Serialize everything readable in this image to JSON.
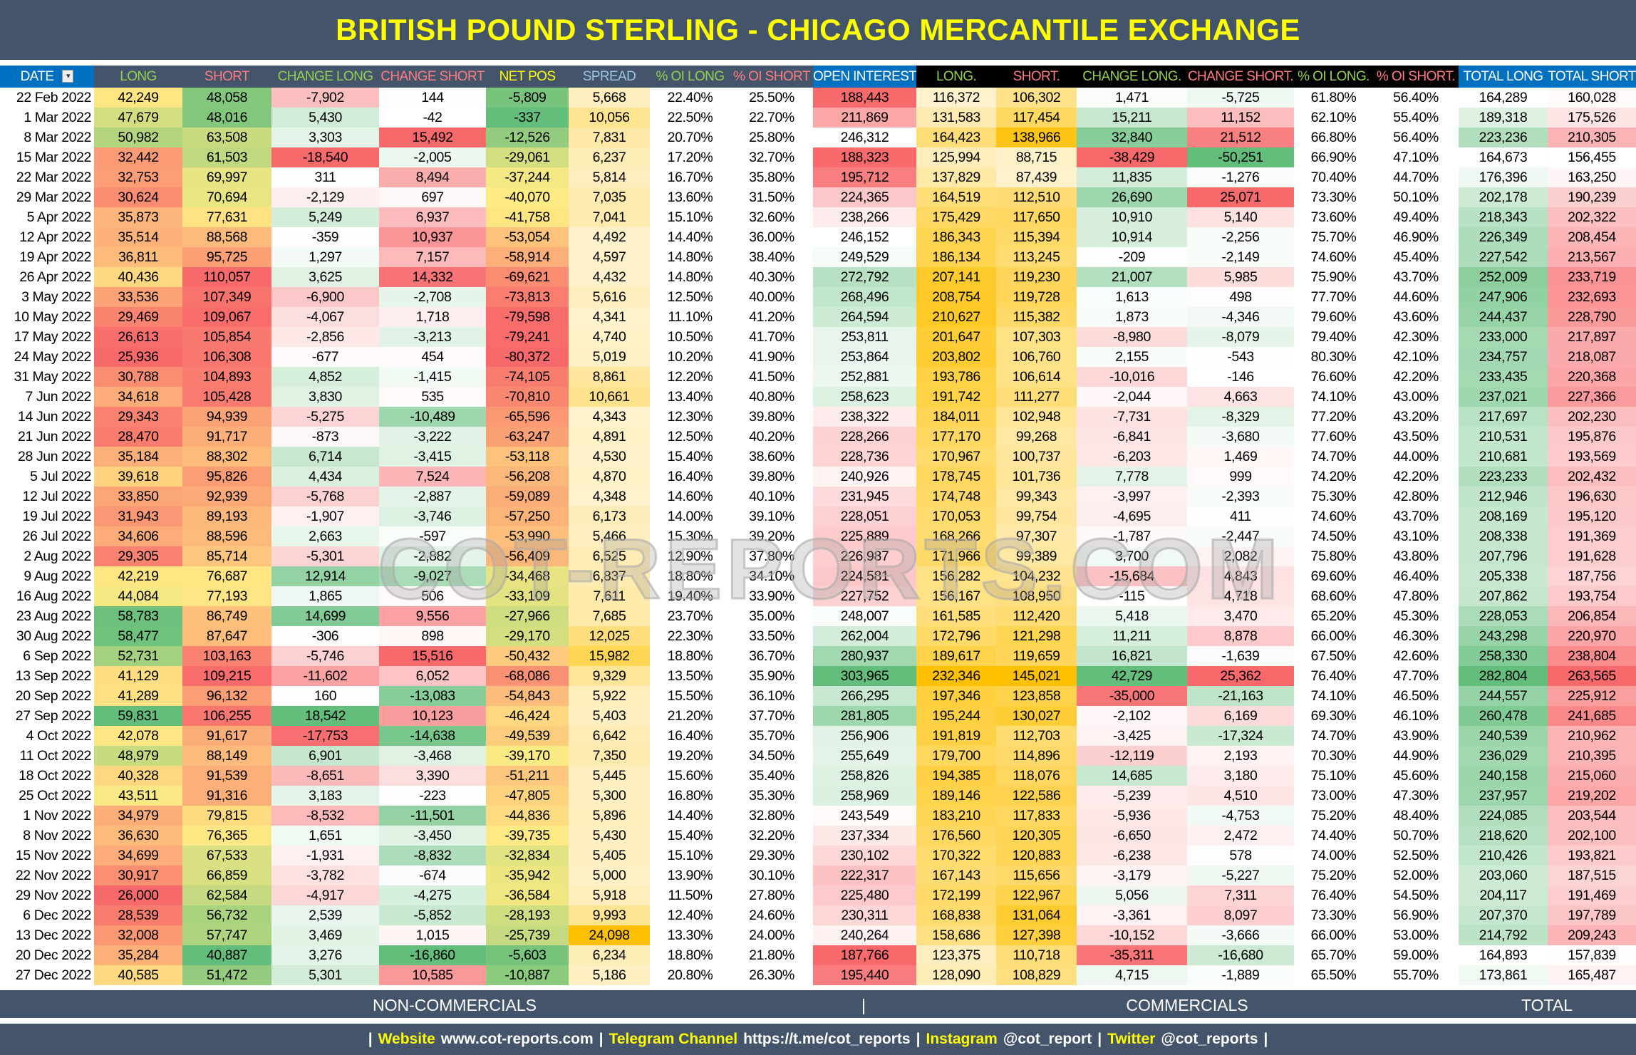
{
  "title": "BRITISH POUND STERLING - CHICAGO MERCANTILE EXCHANGE",
  "colors": {
    "title_bg": "#44546a",
    "title_text": "#ffff00",
    "header_blue": "#0070c0",
    "red": "#f8696b",
    "yellow": "#ffeb84",
    "green": "#63be7b",
    "orange": "#ffc000"
  },
  "table": {
    "headers": [
      {
        "label": "DATE",
        "style": "blue",
        "color": "#ffffff"
      },
      {
        "label": "LONG",
        "style": "slate",
        "color": "#92d050"
      },
      {
        "label": "SHORT",
        "style": "slate",
        "color": "#ff7c80"
      },
      {
        "label": "CHANGE LONG",
        "style": "slate",
        "color": "#92d050"
      },
      {
        "label": "CHANGE SHORT",
        "style": "slate",
        "color": "#ff7c80"
      },
      {
        "label": "NET POS",
        "style": "slate",
        "color": "#ffff00"
      },
      {
        "label": "SPREAD",
        "style": "slate",
        "color": "#9dc3e6"
      },
      {
        "label": "% OI LONG",
        "style": "slate",
        "color": "#92d050"
      },
      {
        "label": "% OI SHORT",
        "style": "slate",
        "color": "#ff7c80"
      },
      {
        "label": "OPEN INTEREST",
        "style": "blue",
        "color": "#ffffff"
      },
      {
        "label": "LONG.",
        "style": "black",
        "color": "#92d050"
      },
      {
        "label": "SHORT.",
        "style": "black",
        "color": "#ff7c80"
      },
      {
        "label": "CHANGE LONG.",
        "style": "black",
        "color": "#92d050"
      },
      {
        "label": "CHANGE SHORT.",
        "style": "black",
        "color": "#ff7c80"
      },
      {
        "label": "% OI LONG.",
        "style": "black",
        "color": "#92d050"
      },
      {
        "label": "% OI SHORT.",
        "style": "black",
        "color": "#ff7c80"
      },
      {
        "label": "TOTAL LONG",
        "style": "blue",
        "color": "#ffffff"
      },
      {
        "label": "TOTAL SHORT",
        "style": "blue",
        "color": "#ffffff"
      }
    ],
    "rows": [
      [
        "22 Feb 2022",
        "42,249",
        "48,058",
        "-7,902",
        "144",
        "-5,809",
        "5,668",
        "22.40%",
        "25.50%",
        "188,443",
        "116,372",
        "106,302",
        "1,471",
        "-5,725",
        "61.80%",
        "56.40%",
        "164,289",
        "160,028"
      ],
      [
        "1 Mar 2022",
        "47,679",
        "48,016",
        "5,430",
        "-42",
        "-337",
        "10,056",
        "22.50%",
        "22.70%",
        "211,869",
        "131,583",
        "117,454",
        "15,211",
        "11,152",
        "62.10%",
        "55.40%",
        "189,318",
        "175,526"
      ],
      [
        "8 Mar 2022",
        "50,982",
        "63,508",
        "3,303",
        "15,492",
        "-12,526",
        "7,831",
        "20.70%",
        "25.80%",
        "246,312",
        "164,423",
        "138,966",
        "32,840",
        "21,512",
        "66.80%",
        "56.40%",
        "223,236",
        "210,305"
      ],
      [
        "15 Mar 2022",
        "32,442",
        "61,503",
        "-18,540",
        "-2,005",
        "-29,061",
        "6,237",
        "17.20%",
        "32.70%",
        "188,323",
        "125,994",
        "88,715",
        "-38,429",
        "-50,251",
        "66.90%",
        "47.10%",
        "164,673",
        "156,455"
      ],
      [
        "22 Mar 2022",
        "32,753",
        "69,997",
        "311",
        "8,494",
        "-37,244",
        "5,814",
        "16.70%",
        "35.80%",
        "195,712",
        "137,829",
        "87,439",
        "11,835",
        "-1,276",
        "70.40%",
        "44.70%",
        "176,396",
        "163,250"
      ],
      [
        "29 Mar 2022",
        "30,624",
        "70,694",
        "-2,129",
        "697",
        "-40,070",
        "7,035",
        "13.60%",
        "31.50%",
        "224,365",
        "164,519",
        "112,510",
        "26,690",
        "25,071",
        "73.30%",
        "50.10%",
        "202,178",
        "190,239"
      ],
      [
        "5 Apr 2022",
        "35,873",
        "77,631",
        "5,249",
        "6,937",
        "-41,758",
        "7,041",
        "15.10%",
        "32.60%",
        "238,266",
        "175,429",
        "117,650",
        "10,910",
        "5,140",
        "73.60%",
        "49.40%",
        "218,343",
        "202,322"
      ],
      [
        "12 Apr 2022",
        "35,514",
        "88,568",
        "-359",
        "10,937",
        "-53,054",
        "4,492",
        "14.40%",
        "36.00%",
        "246,152",
        "186,343",
        "115,394",
        "10,914",
        "-2,256",
        "75.70%",
        "46.90%",
        "226,349",
        "208,454"
      ],
      [
        "19 Apr 2022",
        "36,811",
        "95,725",
        "1,297",
        "7,157",
        "-58,914",
        "4,597",
        "14.80%",
        "38.40%",
        "249,529",
        "186,134",
        "113,245",
        "-209",
        "-2,149",
        "74.60%",
        "45.40%",
        "227,542",
        "213,567"
      ],
      [
        "26 Apr 2022",
        "40,436",
        "110,057",
        "3,625",
        "14,332",
        "-69,621",
        "4,432",
        "14.80%",
        "40.30%",
        "272,792",
        "207,141",
        "119,230",
        "21,007",
        "5,985",
        "75.90%",
        "43.70%",
        "252,009",
        "233,719"
      ],
      [
        "3 May 2022",
        "33,536",
        "107,349",
        "-6,900",
        "-2,708",
        "-73,813",
        "5,616",
        "12.50%",
        "40.00%",
        "268,496",
        "208,754",
        "119,728",
        "1,613",
        "498",
        "77.70%",
        "44.60%",
        "247,906",
        "232,693"
      ],
      [
        "10 May 2022",
        "29,469",
        "109,067",
        "-4,067",
        "1,718",
        "-79,598",
        "4,341",
        "11.10%",
        "41.20%",
        "264,594",
        "210,627",
        "115,382",
        "1,873",
        "-4,346",
        "79.60%",
        "43.60%",
        "244,437",
        "228,790"
      ],
      [
        "17 May 2022",
        "26,613",
        "105,854",
        "-2,856",
        "-3,213",
        "-79,241",
        "4,740",
        "10.50%",
        "41.70%",
        "253,811",
        "201,647",
        "107,303",
        "-8,980",
        "-8,079",
        "79.40%",
        "42.30%",
        "233,000",
        "217,897"
      ],
      [
        "24 May 2022",
        "25,936",
        "106,308",
        "-677",
        "454",
        "-80,372",
        "5,019",
        "10.20%",
        "41.90%",
        "253,864",
        "203,802",
        "106,760",
        "2,155",
        "-543",
        "80.30%",
        "42.10%",
        "234,757",
        "218,087"
      ],
      [
        "31 May 2022",
        "30,788",
        "104,893",
        "4,852",
        "-1,415",
        "-74,105",
        "8,861",
        "12.20%",
        "41.50%",
        "252,881",
        "193,786",
        "106,614",
        "-10,016",
        "-146",
        "76.60%",
        "42.20%",
        "233,435",
        "220,368"
      ],
      [
        "7 Jun 2022",
        "34,618",
        "105,428",
        "3,830",
        "535",
        "-70,810",
        "10,661",
        "13.40%",
        "40.80%",
        "258,623",
        "191,742",
        "111,277",
        "-2,044",
        "4,663",
        "74.10%",
        "43.00%",
        "237,021",
        "227,366"
      ],
      [
        "14 Jun 2022",
        "29,343",
        "94,939",
        "-5,275",
        "-10,489",
        "-65,596",
        "4,343",
        "12.30%",
        "39.80%",
        "238,322",
        "184,011",
        "102,948",
        "-7,731",
        "-8,329",
        "77.20%",
        "43.20%",
        "217,697",
        "202,230"
      ],
      [
        "21 Jun 2022",
        "28,470",
        "91,717",
        "-873",
        "-3,222",
        "-63,247",
        "4,891",
        "12.50%",
        "40.20%",
        "228,266",
        "177,170",
        "99,268",
        "-6,841",
        "-3,680",
        "77.60%",
        "43.50%",
        "210,531",
        "195,876"
      ],
      [
        "28 Jun 2022",
        "35,184",
        "88,302",
        "6,714",
        "-3,415",
        "-53,118",
        "4,530",
        "15.40%",
        "38.60%",
        "228,736",
        "170,967",
        "100,737",
        "-6,203",
        "1,469",
        "74.70%",
        "44.00%",
        "210,681",
        "193,569"
      ],
      [
        "5 Jul 2022",
        "39,618",
        "95,826",
        "4,434",
        "7,524",
        "-56,208",
        "4,870",
        "16.40%",
        "39.80%",
        "240,926",
        "178,745",
        "101,736",
        "7,778",
        "999",
        "74.20%",
        "42.20%",
        "223,233",
        "202,432"
      ],
      [
        "12 Jul 2022",
        "33,850",
        "92,939",
        "-5,768",
        "-2,887",
        "-59,089",
        "4,348",
        "14.60%",
        "40.10%",
        "231,945",
        "174,748",
        "99,343",
        "-3,997",
        "-2,393",
        "75.30%",
        "42.80%",
        "212,946",
        "196,630"
      ],
      [
        "19 Jul 2022",
        "31,943",
        "89,193",
        "-1,907",
        "-3,746",
        "-57,250",
        "6,173",
        "14.00%",
        "39.10%",
        "228,051",
        "170,053",
        "99,754",
        "-4,695",
        "411",
        "74.60%",
        "43.70%",
        "208,169",
        "195,120"
      ],
      [
        "26 Jul 2022",
        "34,606",
        "88,596",
        "2,663",
        "-597",
        "-53,990",
        "5,466",
        "15.30%",
        "39.20%",
        "225,889",
        "168,266",
        "97,307",
        "-1,787",
        "-2,447",
        "74.50%",
        "43.10%",
        "208,338",
        "191,369"
      ],
      [
        "2 Aug 2022",
        "29,305",
        "85,714",
        "-5,301",
        "-2,882",
        "-56,409",
        "6,525",
        "12.90%",
        "37.80%",
        "226,987",
        "171,966",
        "99,389",
        "3,700",
        "2,082",
        "75.80%",
        "43.80%",
        "207,796",
        "191,628"
      ],
      [
        "9 Aug 2022",
        "42,219",
        "76,687",
        "12,914",
        "-9,027",
        "-34,468",
        "6,837",
        "18.80%",
        "34.10%",
        "224,581",
        "156,282",
        "104,232",
        "-15,684",
        "4,843",
        "69.60%",
        "46.40%",
        "205,338",
        "187,756"
      ],
      [
        "16 Aug 2022",
        "44,084",
        "77,193",
        "1,865",
        "506",
        "-33,109",
        "7,611",
        "19.40%",
        "33.90%",
        "227,752",
        "156,167",
        "108,950",
        "-115",
        "4,718",
        "68.60%",
        "47.80%",
        "207,862",
        "193,754"
      ],
      [
        "23 Aug 2022",
        "58,783",
        "86,749",
        "14,699",
        "9,556",
        "-27,966",
        "7,685",
        "23.70%",
        "35.00%",
        "248,007",
        "161,585",
        "112,420",
        "5,418",
        "3,470",
        "65.20%",
        "45.30%",
        "228,053",
        "206,854"
      ],
      [
        "30 Aug 2022",
        "58,477",
        "87,647",
        "-306",
        "898",
        "-29,170",
        "12,025",
        "22.30%",
        "33.50%",
        "262,004",
        "172,796",
        "121,298",
        "11,211",
        "8,878",
        "66.00%",
        "46.30%",
        "243,298",
        "220,970"
      ],
      [
        "6 Sep 2022",
        "52,731",
        "103,163",
        "-5,746",
        "15,516",
        "-50,432",
        "15,982",
        "18.80%",
        "36.70%",
        "280,937",
        "189,617",
        "119,659",
        "16,821",
        "-1,639",
        "67.50%",
        "42.60%",
        "258,330",
        "238,804"
      ],
      [
        "13 Sep 2022",
        "41,129",
        "109,215",
        "-11,602",
        "6,052",
        "-68,086",
        "9,329",
        "13.50%",
        "35.90%",
        "303,965",
        "232,346",
        "145,021",
        "42,729",
        "25,362",
        "76.40%",
        "47.70%",
        "282,804",
        "263,565"
      ],
      [
        "20 Sep 2022",
        "41,289",
        "96,132",
        "160",
        "-13,083",
        "-54,843",
        "5,922",
        "15.50%",
        "36.10%",
        "266,295",
        "197,346",
        "123,858",
        "-35,000",
        "-21,163",
        "74.10%",
        "46.50%",
        "244,557",
        "225,912"
      ],
      [
        "27 Sep 2022",
        "59,831",
        "106,255",
        "18,542",
        "10,123",
        "-46,424",
        "5,403",
        "21.20%",
        "37.70%",
        "281,805",
        "195,244",
        "130,027",
        "-2,102",
        "6,169",
        "69.30%",
        "46.10%",
        "260,478",
        "241,685"
      ],
      [
        "4 Oct 2022",
        "42,078",
        "91,617",
        "-17,753",
        "-14,638",
        "-49,539",
        "6,642",
        "16.40%",
        "35.70%",
        "256,906",
        "191,819",
        "112,703",
        "-3,425",
        "-17,324",
        "74.70%",
        "43.90%",
        "240,539",
        "210,962"
      ],
      [
        "11 Oct 2022",
        "48,979",
        "88,149",
        "6,901",
        "-3,468",
        "-39,170",
        "7,350",
        "19.20%",
        "34.50%",
        "255,649",
        "179,700",
        "114,896",
        "-12,119",
        "2,193",
        "70.30%",
        "44.90%",
        "236,029",
        "210,395"
      ],
      [
        "18 Oct 2022",
        "40,328",
        "91,539",
        "-8,651",
        "3,390",
        "-51,211",
        "5,445",
        "15.60%",
        "35.40%",
        "258,826",
        "194,385",
        "118,076",
        "14,685",
        "3,180",
        "75.10%",
        "45.60%",
        "240,158",
        "215,060"
      ],
      [
        "25 Oct 2022",
        "43,511",
        "91,316",
        "3,183",
        "-223",
        "-47,805",
        "5,300",
        "16.80%",
        "35.30%",
        "258,969",
        "189,146",
        "122,586",
        "-5,239",
        "4,510",
        "73.00%",
        "47.30%",
        "237,957",
        "219,202"
      ],
      [
        "1 Nov 2022",
        "34,979",
        "79,815",
        "-8,532",
        "-11,501",
        "-44,836",
        "5,896",
        "14.40%",
        "32.80%",
        "243,549",
        "183,210",
        "117,833",
        "-5,936",
        "-4,753",
        "75.20%",
        "48.40%",
        "224,085",
        "203,544"
      ],
      [
        "8 Nov 2022",
        "36,630",
        "76,365",
        "1,651",
        "-3,450",
        "-39,735",
        "5,430",
        "15.40%",
        "32.20%",
        "237,334",
        "176,560",
        "120,305",
        "-6,650",
        "2,472",
        "74.40%",
        "50.70%",
        "218,620",
        "202,100"
      ],
      [
        "15 Nov 2022",
        "34,699",
        "67,533",
        "-1,931",
        "-8,832",
        "-32,834",
        "5,405",
        "15.10%",
        "29.30%",
        "230,102",
        "170,322",
        "120,883",
        "-6,238",
        "578",
        "74.00%",
        "52.50%",
        "210,426",
        "193,821"
      ],
      [
        "22 Nov 2022",
        "30,917",
        "66,859",
        "-3,782",
        "-674",
        "-35,942",
        "5,000",
        "13.90%",
        "30.10%",
        "222,317",
        "167,143",
        "115,656",
        "-3,179",
        "-5,227",
        "75.20%",
        "52.00%",
        "203,060",
        "187,515"
      ],
      [
        "29 Nov 2022",
        "26,000",
        "62,584",
        "-4,917",
        "-4,275",
        "-36,584",
        "5,918",
        "11.50%",
        "27.80%",
        "225,480",
        "172,199",
        "122,967",
        "5,056",
        "7,311",
        "76.40%",
        "54.50%",
        "204,117",
        "191,469"
      ],
      [
        "6 Dec 2022",
        "28,539",
        "56,732",
        "2,539",
        "-5,852",
        "-28,193",
        "9,993",
        "12.40%",
        "24.60%",
        "230,311",
        "168,838",
        "131,064",
        "-3,361",
        "8,097",
        "73.30%",
        "56.90%",
        "207,370",
        "197,789"
      ],
      [
        "13 Dec 2022",
        "32,008",
        "57,747",
        "3,469",
        "1,015",
        "-25,739",
        "24,098",
        "13.30%",
        "24.00%",
        "240,264",
        "158,686",
        "127,398",
        "-10,152",
        "-3,666",
        "66.00%",
        "53.00%",
        "214,792",
        "209,243"
      ],
      [
        "20 Dec 2022",
        "35,284",
        "40,887",
        "3,276",
        "-16,860",
        "-5,603",
        "6,234",
        "18.80%",
        "21.80%",
        "187,766",
        "123,375",
        "110,718",
        "-35,311",
        "-16,680",
        "65.70%",
        "59.00%",
        "164,893",
        "157,839"
      ],
      [
        "27 Dec 2022",
        "40,585",
        "51,472",
        "5,301",
        "10,585",
        "-10,887",
        "5,186",
        "20.80%",
        "26.30%",
        "195,440",
        "128,090",
        "108,829",
        "4,715",
        "-1,889",
        "65.50%",
        "55.70%",
        "173,861",
        "165,487"
      ]
    ]
  },
  "watermark": "COT-REPORTS.COM",
  "footer": {
    "non_commercials": "NON-COMMERCIALS",
    "separator": "|",
    "commercials": "COMMERCIALS",
    "total": "TOTAL"
  },
  "links": [
    {
      "label": "Website",
      "value": "www.cot-reports.com"
    },
    {
      "label": "Telegram Channel",
      "value": "https://t.me/cot_reports"
    },
    {
      "label": "Instagram",
      "value": "@cot_report"
    },
    {
      "label": "Twitter",
      "value": "@cot_reports"
    }
  ]
}
